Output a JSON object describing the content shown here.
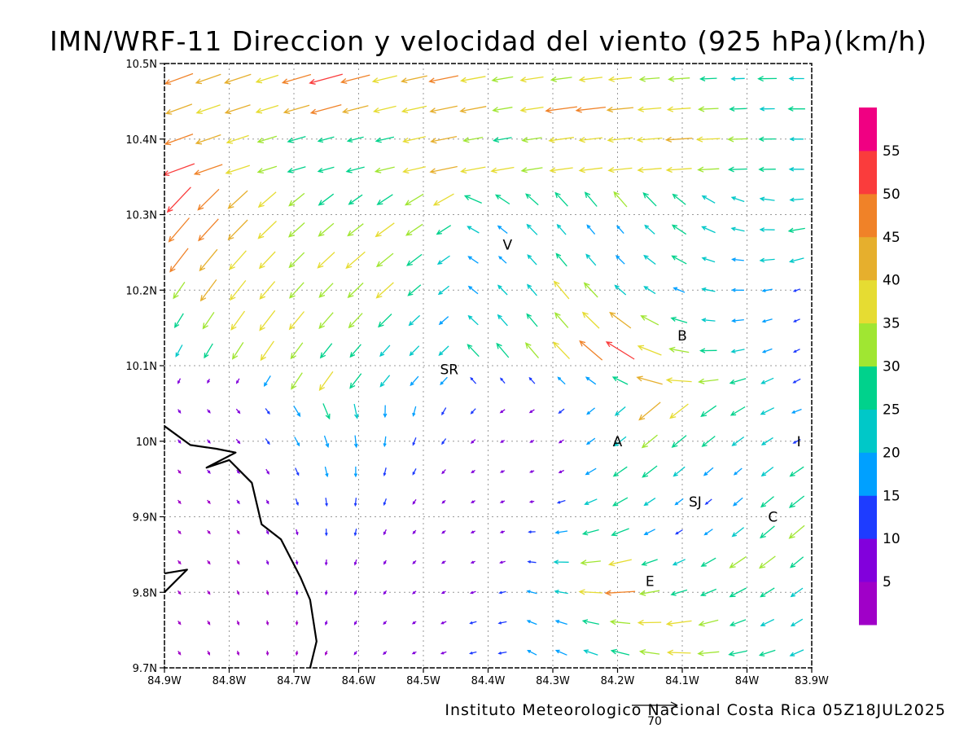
{
  "title": "IMN/WRF-11 Direccion y velocidad del viento (925 hPa)(km/h)",
  "footer": "Instituto Meteorologico Nacional Costa Rica 05Z18JUL2025",
  "reference_vector": {
    "label": "70",
    "speed": 70
  },
  "axes": {
    "x_ticks": [
      {
        "lon": -84.9,
        "label": "84.9W"
      },
      {
        "lon": -84.8,
        "label": "84.8W"
      },
      {
        "lon": -84.7,
        "label": "84.7W"
      },
      {
        "lon": -84.6,
        "label": "84.6W"
      },
      {
        "lon": -84.5,
        "label": "84.5W"
      },
      {
        "lon": -84.4,
        "label": "84.4W"
      },
      {
        "lon": -84.3,
        "label": "84.3W"
      },
      {
        "lon": -84.2,
        "label": "84.2W"
      },
      {
        "lon": -84.1,
        "label": "84.1W"
      },
      {
        "lon": -84.0,
        "label": "84W"
      },
      {
        "lon": -83.9,
        "label": "83.9W"
      }
    ],
    "y_ticks": [
      {
        "lat": 10.5,
        "label": "10.5N"
      },
      {
        "lat": 10.4,
        "label": "10.4N"
      },
      {
        "lat": 10.3,
        "label": "10.3N"
      },
      {
        "lat": 10.2,
        "label": "10.2N"
      },
      {
        "lat": 10.1,
        "label": "10.1N"
      },
      {
        "lat": 10.0,
        "label": "10N"
      },
      {
        "lat": 9.9,
        "label": "9.9N"
      },
      {
        "lat": 9.8,
        "label": "9.8N"
      },
      {
        "lat": 9.7,
        "label": "9.7N"
      }
    ],
    "lon_range": [
      -84.9,
      -83.9
    ],
    "lat_range": [
      9.7,
      10.5
    ],
    "grid": true
  },
  "colorbar": {
    "bands": [
      {
        "color": "#a000c8"
      },
      {
        "color": "#8200dc"
      },
      {
        "color": "#1e3cff"
      },
      {
        "color": "#00a0ff"
      },
      {
        "color": "#00c8c8"
      },
      {
        "color": "#00d28c"
      },
      {
        "color": "#a0e632"
      },
      {
        "color": "#e6dc32"
      },
      {
        "color": "#e6af2d"
      },
      {
        "color": "#f08228"
      },
      {
        "color": "#fa3c3c"
      },
      {
        "color": "#f00082"
      }
    ],
    "labels": [
      "5",
      "10",
      "15",
      "20",
      "25",
      "30",
      "35",
      "40",
      "45",
      "50",
      "55"
    ]
  },
  "places": [
    {
      "label": "V",
      "lon": -84.37,
      "lat": 10.26
    },
    {
      "label": "SR",
      "lon": -84.46,
      "lat": 10.095
    },
    {
      "label": "B",
      "lon": -84.1,
      "lat": 10.14
    },
    {
      "label": "A",
      "lon": -84.2,
      "lat": 10.0
    },
    {
      "label": "I",
      "lon": -83.92,
      "lat": 10.0
    },
    {
      "label": "SJ",
      "lon": -84.08,
      "lat": 9.92
    },
    {
      "label": "C",
      "lon": -83.96,
      "lat": 9.9
    },
    {
      "label": "E",
      "lon": -84.15,
      "lat": 9.815
    }
  ],
  "coastline": [
    [
      [
        -84.9,
        10.02
      ],
      [
        -84.86,
        9.995
      ],
      [
        -84.82,
        9.99
      ],
      [
        -84.79,
        9.985
      ],
      [
        -84.835,
        9.965
      ],
      [
        -84.8,
        9.975
      ],
      [
        -84.765,
        9.945
      ],
      [
        -84.75,
        9.89
      ],
      [
        -84.72,
        9.87
      ],
      [
        -84.69,
        9.82
      ],
      [
        -84.675,
        9.79
      ],
      [
        -84.665,
        9.735
      ],
      [
        -84.675,
        9.7
      ]
    ],
    [
      [
        -84.9,
        9.825
      ],
      [
        -84.865,
        9.83
      ],
      [
        -84.9,
        9.8
      ]
    ]
  ],
  "wind_field": {
    "cols": 22,
    "rows": 20,
    "max_speed": 60,
    "speeds": [
      [
        45,
        40,
        42,
        35,
        45,
        52,
        45,
        38,
        40,
        45,
        38,
        32,
        35,
        32,
        35,
        35,
        30,
        32,
        25,
        20,
        28,
        22
      ],
      [
        42,
        38,
        40,
        35,
        40,
        48,
        40,
        35,
        38,
        42,
        40,
        30,
        35,
        48,
        45,
        40,
        35,
        35,
        30,
        25,
        22,
        25
      ],
      [
        45,
        40,
        35,
        30,
        28,
        25,
        25,
        28,
        35,
        40,
        30,
        28,
        30,
        38,
        35,
        38,
        38,
        40,
        35,
        30,
        25,
        20
      ],
      [
        50,
        45,
        38,
        30,
        28,
        25,
        28,
        30,
        35,
        42,
        38,
        35,
        32,
        35,
        35,
        36,
        36,
        38,
        32,
        28,
        25,
        22
      ],
      [
        52,
        45,
        40,
        35,
        30,
        28,
        25,
        28,
        32,
        35,
        28,
        25,
        25,
        28,
        28,
        30,
        28,
        25,
        22,
        20,
        22,
        20
      ],
      [
        48,
        45,
        42,
        38,
        32,
        30,
        30,
        35,
        30,
        25,
        20,
        18,
        22,
        20,
        18,
        15,
        20,
        25,
        22,
        20,
        22,
        25
      ],
      [
        45,
        42,
        38,
        35,
        32,
        35,
        38,
        32,
        28,
        22,
        18,
        15,
        20,
        25,
        22,
        18,
        22,
        25,
        20,
        18,
        22,
        22
      ],
      [
        30,
        40,
        38,
        35,
        32,
        30,
        32,
        35,
        25,
        20,
        18,
        20,
        22,
        35,
        30,
        22,
        20,
        18,
        20,
        18,
        15,
        10
      ],
      [
        25,
        30,
        35,
        38,
        35,
        32,
        30,
        28,
        22,
        18,
        20,
        22,
        25,
        30,
        35,
        40,
        30,
        25,
        20,
        18,
        15,
        10
      ],
      [
        20,
        25,
        30,
        35,
        30,
        28,
        25,
        22,
        20,
        20,
        25,
        28,
        30,
        35,
        45,
        50,
        38,
        30,
        25,
        20,
        15,
        10
      ],
      [
        8,
        6,
        8,
        18,
        30,
        35,
        28,
        22,
        18,
        15,
        12,
        10,
        12,
        15,
        18,
        25,
        40,
        38,
        30,
        25,
        20,
        12
      ],
      [
        6,
        5,
        8,
        10,
        18,
        25,
        22,
        18,
        15,
        12,
        10,
        8,
        8,
        10,
        15,
        20,
        42,
        35,
        28,
        25,
        22,
        15
      ],
      [
        5,
        6,
        8,
        10,
        15,
        18,
        18,
        15,
        12,
        10,
        8,
        6,
        5,
        8,
        15,
        22,
        30,
        28,
        25,
        22,
        20,
        12
      ],
      [
        4,
        5,
        6,
        8,
        12,
        15,
        15,
        12,
        10,
        8,
        6,
        5,
        5,
        8,
        18,
        25,
        28,
        22,
        18,
        15,
        22,
        25
      ],
      [
        3,
        4,
        5,
        6,
        10,
        12,
        12,
        10,
        8,
        6,
        5,
        5,
        6,
        12,
        20,
        25,
        20,
        15,
        12,
        18,
        25,
        28
      ],
      [
        2,
        3,
        4,
        5,
        8,
        10,
        10,
        8,
        6,
        5,
        5,
        6,
        10,
        18,
        25,
        28,
        18,
        12,
        15,
        22,
        28,
        30
      ],
      [
        3,
        3,
        4,
        5,
        6,
        8,
        8,
        6,
        5,
        5,
        6,
        8,
        12,
        22,
        30,
        35,
        25,
        20,
        25,
        30,
        30,
        25
      ],
      [
        2,
        3,
        3,
        4,
        5,
        6,
        6,
        5,
        5,
        6,
        8,
        10,
        15,
        20,
        35,
        45,
        30,
        25,
        25,
        28,
        25,
        22
      ],
      [
        2,
        2,
        3,
        3,
        4,
        5,
        5,
        5,
        6,
        8,
        10,
        12,
        15,
        18,
        25,
        30,
        35,
        38,
        30,
        25,
        22,
        20
      ],
      [
        2,
        2,
        3,
        3,
        4,
        4,
        5,
        5,
        6,
        8,
        10,
        12,
        15,
        18,
        22,
        28,
        30,
        35,
        32,
        28,
        25,
        22
      ]
    ]
  }
}
